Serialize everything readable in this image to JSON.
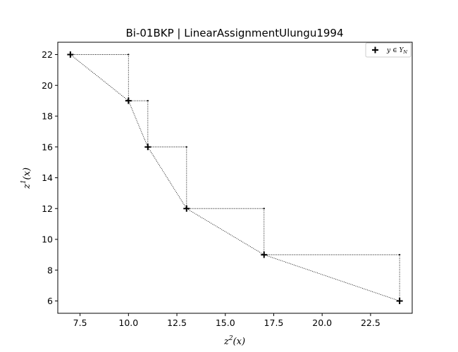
{
  "chart_data": {
    "type": "scatter",
    "title": "Bi-01BKP | LinearAssignmentUlungu1994",
    "xlabel_base": "z",
    "xlabel_sup": "2",
    "xlabel_tail": "(x)",
    "ylabel_base": "z",
    "ylabel_sup": "1",
    "ylabel_tail": "(x)",
    "xlim": [
      6.35,
      24.65
    ],
    "ylim": [
      5.2,
      22.8
    ],
    "xticks": [
      7.5,
      10.0,
      12.5,
      15.0,
      17.5,
      20.0,
      22.5
    ],
    "xtick_labels": [
      "7.5",
      "10.0",
      "12.5",
      "15.0",
      "17.5",
      "20.0",
      "22.5"
    ],
    "yticks": [
      6,
      8,
      10,
      12,
      14,
      16,
      18,
      20,
      22
    ],
    "ytick_labels": [
      "6",
      "8",
      "10",
      "12",
      "14",
      "16",
      "18",
      "20",
      "22"
    ],
    "series": [
      {
        "name": "y ∈ Y_N",
        "x": [
          7,
          10,
          11,
          13,
          17,
          24
        ],
        "y": [
          22,
          19,
          16,
          12,
          9,
          6
        ]
      }
    ],
    "legend_label": "y ∈ Y",
    "legend_sub": "N",
    "legend_position": "top-right",
    "grid": false
  },
  "colors": {
    "marker": "#000000",
    "line": "#000000",
    "background": "#ffffff"
  }
}
